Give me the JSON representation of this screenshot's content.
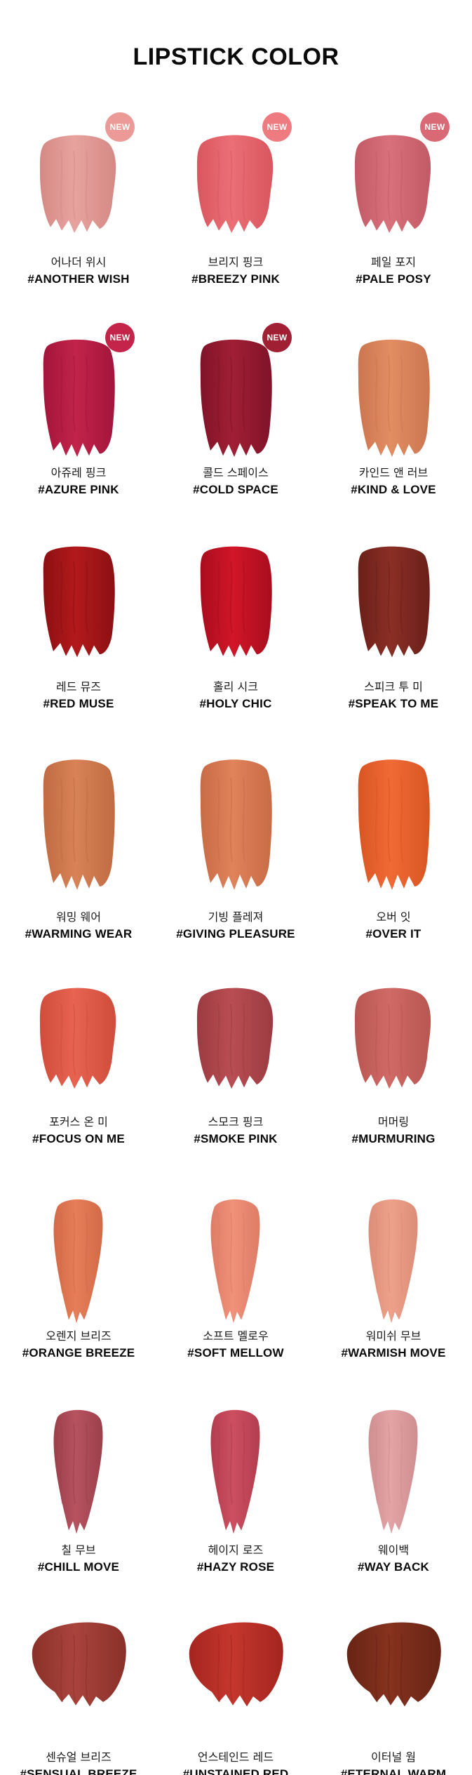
{
  "title": "LIPSTICK COLOR",
  "badge_label": "NEW",
  "shades": [
    {
      "kr": "어나더 위시",
      "en": "#ANOTHER WISH",
      "color": "#e8a39f",
      "shade": "#d48984",
      "new": true,
      "badge_color": "#ec9a97"
    },
    {
      "kr": "브리지 핑크",
      "en": "#BREEZY PINK",
      "color": "#ec6f76",
      "shade": "#d9565e",
      "new": true,
      "badge_color": "#ee7b80"
    },
    {
      "kr": "페일 포지",
      "en": "#PALE POSY",
      "color": "#d8717b",
      "shade": "#c25a65",
      "new": true,
      "badge_color": "#d96a75"
    },
    {
      "kr": "아쥬레 핑크",
      "en": "#AZURE PINK",
      "color": "#c2234a",
      "shade": "#a3153b",
      "new": true,
      "badge_color": "#c4234a"
    },
    {
      "kr": "콜드 스페이스",
      "en": "#COLD SPACE",
      "color": "#a11f36",
      "shade": "#7f1328",
      "new": true,
      "badge_color": "#a01f33"
    },
    {
      "kr": "카인드 앤 러브",
      "en": "#KIND & LOVE",
      "color": "#e28d62",
      "shade": "#cb7650",
      "new": false,
      "badge_color": ""
    },
    {
      "kr": "레드 뮤즈",
      "en": "#RED MUSE",
      "color": "#b3191c",
      "shade": "#8c1012",
      "new": false,
      "badge_color": ""
    },
    {
      "kr": "홀리 시크",
      "en": "#HOLY CHIC",
      "color": "#d11628",
      "shade": "#a80d1d",
      "new": false,
      "badge_color": ""
    },
    {
      "kr": "스피크 투 미",
      "en": "#SPEAK TO ME",
      "color": "#8a2f25",
      "shade": "#6a2019",
      "new": false,
      "badge_color": ""
    },
    {
      "kr": "워밍 웨어",
      "en": "#WARMING WEAR",
      "color": "#d98257",
      "shade": "#c06b42",
      "new": false,
      "badge_color": ""
    },
    {
      "kr": "기빙 플레져",
      "en": "#GIVING PLEASURE",
      "color": "#e0825a",
      "shade": "#c86c46",
      "new": false,
      "badge_color": ""
    },
    {
      "kr": "오버 잇",
      "en": "#OVER IT",
      "color": "#f06a35",
      "shade": "#d85522",
      "new": false,
      "badge_color": ""
    },
    {
      "kr": "포커스 온 미",
      "en": "#FOCUS ON ME",
      "color": "#e86350",
      "shade": "#cf4d3c",
      "new": false,
      "badge_color": ""
    },
    {
      "kr": "스모크 핑크",
      "en": "#SMOKE PINK",
      "color": "#b84e53",
      "shade": "#9b3b41",
      "new": false,
      "badge_color": ""
    },
    {
      "kr": "머머링",
      "en": "#MURMURING",
      "color": "#d06a66",
      "shade": "#b85652",
      "new": false,
      "badge_color": ""
    },
    {
      "kr": "오렌지 브리즈",
      "en": "#ORANGE BREEZE",
      "color": "#e67e5a",
      "shade": "#d26a47",
      "new": false,
      "badge_color": ""
    },
    {
      "kr": "소프트 멜로우",
      "en": "#SOFT MELLOW",
      "color": "#f0917a",
      "shade": "#de7c66",
      "new": false,
      "badge_color": ""
    },
    {
      "kr": "워미쉬 무브",
      "en": "#WARMISH MOVE",
      "color": "#eea18a",
      "shade": "#dc8d77",
      "new": false,
      "badge_color": ""
    },
    {
      "kr": "칠 무브",
      "en": "#CHILL MOVE",
      "color": "#b6535f",
      "shade": "#9c3f4b",
      "new": false,
      "badge_color": ""
    },
    {
      "kr": "헤이지 로즈",
      "en": "#HAZY ROSE",
      "color": "#cc4f60",
      "shade": "#b23d4e",
      "new": false,
      "badge_color": ""
    },
    {
      "kr": "웨이백",
      "en": "#WAY BACK",
      "color": "#e3a4a6",
      "shade": "#cf8e91",
      "new": false,
      "badge_color": ""
    },
    {
      "kr": "센슈얼 브리즈",
      "en": "#SENSUAL BREEZE",
      "color": "#a9443d",
      "shade": "#8a3028",
      "new": false,
      "badge_color": ""
    },
    {
      "kr": "언스테인드 레드",
      "en": "#UNSTAINED RED",
      "color": "#c5372e",
      "shade": "#a4251e",
      "new": false,
      "badge_color": ""
    },
    {
      "kr": "이터널 웜",
      "en": "#ETERNAL WARM",
      "color": "#86321f",
      "shade": "#682414",
      "new": false,
      "badge_color": ""
    }
  ]
}
